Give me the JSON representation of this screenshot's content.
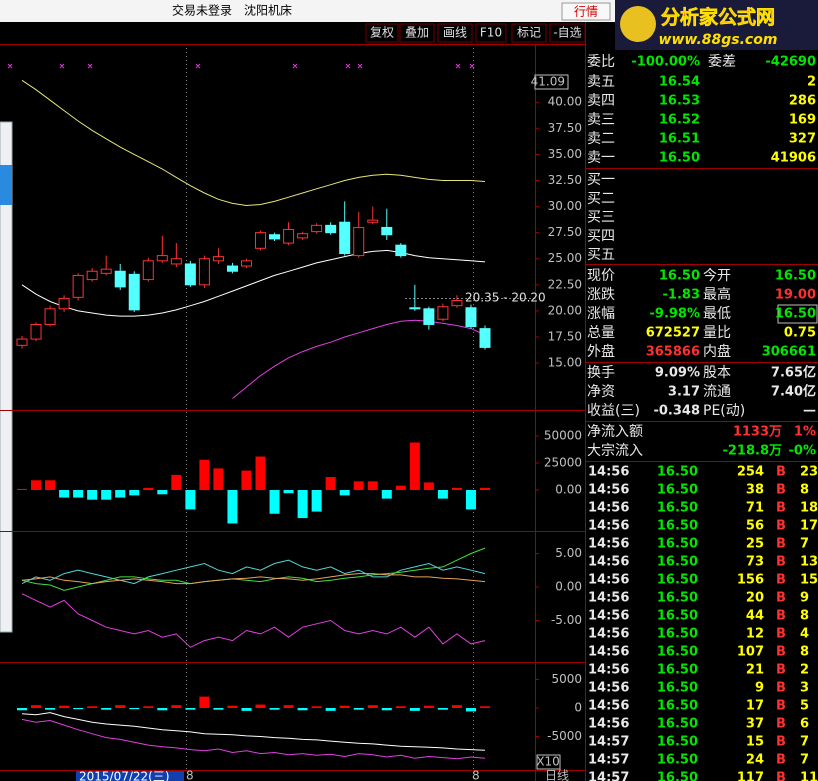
{
  "header": {
    "status": "交易未登录",
    "stock": "沈阳机床",
    "button": "行情"
  },
  "logo": {
    "title": "分析家公式网",
    "url": "www.88gs.com"
  },
  "toolbar": [
    "复权",
    "叠加",
    "画线",
    "F10",
    "标记",
    "-自选"
  ],
  "footer": {
    "date_label": "2015/07/22(三)",
    "period": "日线",
    "cursor_marks": [
      "8",
      "8"
    ]
  },
  "quote": {
    "weibi": [
      "委比",
      "-100.00%",
      "委差",
      "-42690"
    ],
    "asks": [
      [
        "卖五",
        "16.54",
        "2"
      ],
      [
        "卖四",
        "16.53",
        "286"
      ],
      [
        "卖三",
        "16.52",
        "169"
      ],
      [
        "卖二",
        "16.51",
        "327"
      ],
      [
        "卖一",
        "16.50",
        "41906"
      ]
    ],
    "bids": [
      "买一",
      "买二",
      "买三",
      "买四",
      "买五"
    ],
    "stats": [
      [
        "现价",
        "16.50",
        "今开",
        "16.50"
      ],
      [
        "涨跌",
        "-1.83",
        "最高",
        "19.00"
      ],
      [
        "涨幅",
        "-9.98%",
        "最低",
        "16.50"
      ],
      [
        "总量",
        "672527",
        "量比",
        "0.75"
      ],
      [
        "外盘",
        "365866",
        "内盘",
        "306661"
      ]
    ],
    "finance": [
      [
        "换手",
        "9.09%",
        "股本",
        "7.65亿"
      ],
      [
        "净资",
        "3.17",
        "流通",
        "7.40亿"
      ],
      [
        "收益(三)",
        "-0.348",
        "PE(动)",
        "—"
      ]
    ],
    "flows": [
      [
        "净流入额",
        "1133万",
        "1%"
      ],
      [
        "大宗流入",
        "-218.8万",
        "-0%"
      ]
    ],
    "ticks": [
      [
        "14:56",
        "16.50",
        "254",
        "B",
        "23"
      ],
      [
        "14:56",
        "16.50",
        "38",
        "B",
        "8"
      ],
      [
        "14:56",
        "16.50",
        "71",
        "B",
        "18"
      ],
      [
        "14:56",
        "16.50",
        "56",
        "B",
        "17"
      ],
      [
        "14:56",
        "16.50",
        "25",
        "B",
        "7"
      ],
      [
        "14:56",
        "16.50",
        "73",
        "B",
        "13"
      ],
      [
        "14:56",
        "16.50",
        "156",
        "B",
        "15"
      ],
      [
        "14:56",
        "16.50",
        "20",
        "B",
        "9"
      ],
      [
        "14:56",
        "16.50",
        "44",
        "B",
        "8"
      ],
      [
        "14:56",
        "16.50",
        "12",
        "B",
        "4"
      ],
      [
        "14:56",
        "16.50",
        "107",
        "B",
        "8"
      ],
      [
        "14:56",
        "16.50",
        "21",
        "B",
        "2"
      ],
      [
        "14:56",
        "16.50",
        "9",
        "B",
        "3"
      ],
      [
        "14:56",
        "16.50",
        "17",
        "B",
        "5"
      ],
      [
        "14:56",
        "16.50",
        "37",
        "B",
        "6"
      ],
      [
        "14:57",
        "16.50",
        "15",
        "B",
        "7"
      ],
      [
        "14:57",
        "16.50",
        "24",
        "B",
        "7"
      ],
      [
        "14:57",
        "16.50",
        "117",
        "B",
        "11"
      ]
    ]
  },
  "chart_data": [
    {
      "type": "candlestick",
      "cursor_value": 41.09,
      "annotation": "20.35 - 20.20",
      "categories": [
        null,
        null,
        null,
        null,
        null,
        null,
        null,
        null,
        null,
        null,
        null,
        null,
        null,
        null,
        null,
        null,
        null,
        null,
        null,
        null,
        null,
        null,
        null,
        null,
        null,
        null,
        null,
        null,
        null,
        null,
        null,
        null,
        null,
        null
      ],
      "open": [
        16.7,
        17.3,
        18.7,
        20.2,
        21.3,
        23.0,
        23.6,
        23.8,
        23.5,
        23.0,
        24.8,
        24.5,
        24.5,
        22.5,
        24.8,
        24.3,
        24.3,
        26.0,
        27.3,
        26.5,
        27.0,
        27.6,
        28.2,
        28.5,
        25.3,
        28.5,
        28.0,
        26.3,
        20.3,
        20.2,
        19.2,
        20.5,
        20.3,
        18.3
      ],
      "high": [
        17.6,
        18.9,
        20.5,
        21.5,
        23.6,
        24.1,
        25.3,
        24.5,
        23.8,
        25.1,
        27.2,
        26.5,
        24.8,
        25.3,
        26.0,
        24.6,
        25.0,
        27.7,
        27.5,
        28.5,
        27.6,
        28.4,
        28.5,
        30.5,
        29.5,
        30.0,
        29.8,
        26.5,
        22.5,
        20.4,
        20.7,
        21.5,
        20.6,
        18.6
      ],
      "low": [
        16.4,
        17.1,
        18.5,
        19.9,
        21.0,
        22.8,
        23.4,
        22.0,
        19.9,
        22.8,
        24.6,
        24.2,
        22.3,
        22.2,
        24.5,
        23.6,
        24.1,
        25.8,
        26.7,
        26.3,
        26.8,
        27.4,
        27.3,
        25.3,
        25.1,
        28.3,
        26.8,
        25.1,
        20.0,
        18.2,
        19.0,
        20.3,
        18.3,
        16.3
      ],
      "close": [
        17.3,
        18.7,
        20.2,
        21.2,
        23.4,
        23.8,
        24.0,
        22.3,
        20.1,
        24.8,
        25.3,
        25.0,
        22.5,
        25.0,
        25.2,
        23.8,
        24.8,
        27.5,
        26.9,
        27.8,
        27.4,
        28.2,
        27.5,
        25.5,
        28.0,
        28.7,
        27.3,
        25.3,
        20.2,
        18.7,
        20.4,
        21.0,
        18.5,
        16.5
      ],
      "up_color": "#ff3232",
      "down_color": "#54ffff",
      "series": [
        {
          "color": "#e6e678",
          "values": [
            42.1,
            41.2,
            40.2,
            39.2,
            38.2,
            37.3,
            36.5,
            35.7,
            35.0,
            34.3,
            33.6,
            32.8,
            32.0,
            31.3,
            30.7,
            30.3,
            30.1,
            30.2,
            30.5,
            30.9,
            31.3,
            31.7,
            32.1,
            32.5,
            32.8,
            33.0,
            33.1,
            33.0,
            32.8,
            32.6,
            32.5,
            32.5,
            32.5,
            32.4
          ]
        },
        {
          "color": "#ffffff",
          "values": [
            22.5,
            21.6,
            20.9,
            20.4,
            20.0,
            19.8,
            19.6,
            19.5,
            19.5,
            19.6,
            19.8,
            20.1,
            20.5,
            20.9,
            21.4,
            21.9,
            22.4,
            22.9,
            23.4,
            23.8,
            24.2,
            24.6,
            24.9,
            25.2,
            25.5,
            25.7,
            25.8,
            25.6,
            25.3,
            25.1,
            25.0,
            24.9,
            24.8,
            24.7
          ]
        },
        {
          "color": "#e040e0",
          "values": [
            null,
            null,
            null,
            null,
            null,
            null,
            null,
            null,
            null,
            null,
            null,
            null,
            null,
            null,
            null,
            11.6,
            12.7,
            13.8,
            14.7,
            15.5,
            16.1,
            16.6,
            17.0,
            17.5,
            17.9,
            18.3,
            18.7,
            19.0,
            19.1,
            19.0,
            18.8,
            18.6,
            18.3,
            17.7
          ]
        }
      ],
      "ylim": [
        10.5,
        45.2
      ],
      "yticks": [
        {
          "value": 15,
          "label": "15.00"
        },
        {
          "value": 17.5,
          "label": "17.50"
        },
        {
          "value": 20,
          "label": "20.00"
        },
        {
          "value": 22.5,
          "label": "22.50"
        },
        {
          "value": 25,
          "label": "25.00"
        },
        {
          "value": 27.5,
          "label": "27.50"
        },
        {
          "value": 30,
          "label": "30.00"
        },
        {
          "value": 32.5,
          "label": "32.50"
        },
        {
          "value": 35,
          "label": "35.00"
        },
        {
          "value": 37.5,
          "label": "37.50"
        },
        {
          "value": 40,
          "label": "40.00"
        }
      ]
    },
    {
      "type": "bar",
      "up_color": "#ff0000",
      "down_color": "#00ffff",
      "categories": [
        null,
        null,
        null,
        null,
        null,
        null,
        null,
        null,
        null,
        null,
        null,
        null,
        null,
        null,
        null,
        null,
        null,
        null,
        null,
        null,
        null,
        null,
        null,
        null,
        null,
        null,
        null,
        null,
        null,
        null,
        null,
        null,
        null,
        null
      ],
      "values": [
        1000,
        9000,
        9000,
        -7000,
        -7000,
        -9000,
        -9000,
        -7000,
        -5000,
        2000,
        -4000,
        14000,
        -18000,
        28000,
        20000,
        -31000,
        18000,
        31000,
        -22000,
        -3000,
        -26000,
        -20000,
        12000,
        -5000,
        8000,
        8000,
        -8000,
        4000,
        44000,
        7000,
        -8000,
        2000,
        -18000,
        2000
      ],
      "ylim": [
        -37037,
        69444
      ],
      "yticks": [
        50000,
        25000,
        {
          "value": 0,
          "label": "0.00"
        }
      ]
    },
    {
      "type": "line",
      "categories": [
        null,
        null,
        null,
        null,
        null,
        null,
        null,
        null,
        null,
        null,
        null,
        null,
        null,
        null,
        null,
        null,
        null,
        null,
        null,
        null,
        null,
        null,
        null,
        null,
        null,
        null,
        null,
        null,
        null,
        null,
        null,
        null,
        null,
        null
      ],
      "series": [
        {
          "color": "#50d8d8",
          "values": [
            0.5,
            1.5,
            1.0,
            2.0,
            2.5,
            2.0,
            1.5,
            1.0,
            0.5,
            1.5,
            2.0,
            2.5,
            3.0,
            3.5,
            2.5,
            2.0,
            3.0,
            2.5,
            3.5,
            4.0,
            3.0,
            2.5,
            3.0,
            2.0,
            2.5,
            1.5,
            1.5,
            2.5,
            3.0,
            3.5,
            2.5,
            3.0,
            2.5,
            2.0
          ]
        },
        {
          "color": "#40e040",
          "values": [
            1.0,
            0.5,
            0.3,
            -0.5,
            0.0,
            0.5,
            1.0,
            1.5,
            1.5,
            1.2,
            1.0,
            1.0,
            0.5,
            0.8,
            1.0,
            1.2,
            1.0,
            0.8,
            1.2,
            1.5,
            1.3,
            0.8,
            1.0,
            1.3,
            1.5,
            1.8,
            2.0,
            2.2,
            2.5,
            2.8,
            3.0,
            4.0,
            5.0,
            5.8
          ]
        },
        {
          "color": "#e8a060",
          "values": [
            1.0,
            1.2,
            1.5,
            1.0,
            0.8,
            0.5,
            0.8,
            1.0,
            1.2,
            1.0,
            0.8,
            0.5,
            0.5,
            0.8,
            1.0,
            1.2,
            1.3,
            1.5,
            1.3,
            1.2,
            1.0,
            1.2,
            1.5,
            1.8,
            2.0,
            2.0,
            1.8,
            1.8,
            1.5,
            1.5,
            1.3,
            1.2,
            1.0,
            0.8
          ]
        },
        {
          "color": "#e040e0",
          "values": [
            -1.0,
            -2.0,
            -3.0,
            -2.0,
            -4.0,
            -5.0,
            -6.0,
            -6.5,
            -7.0,
            -6.5,
            -7.5,
            -7.0,
            -9.0,
            -8.0,
            -7.5,
            -8.0,
            -6.5,
            -7.0,
            -6.0,
            -7.5,
            -6.0,
            -5.5,
            -5.0,
            -6.5,
            -7.0,
            -6.5,
            -7.0,
            -6.0,
            -7.5,
            -6.0,
            -8.5,
            -7.0,
            -8.5,
            -8.0
          ]
        }
      ],
      "ylim": [
        -10.9,
        7.76
      ],
      "yticks": [
        {
          "value": 5,
          "label": "5.00"
        },
        {
          "value": 0,
          "label": "0.00"
        },
        {
          "value": -5,
          "label": "-5.00"
        }
      ]
    },
    {
      "type": "combo",
      "scale_label": "X10",
      "up_color": "#ff0000",
      "down_color": "#00ffff",
      "categories": [
        null,
        null,
        null,
        null,
        null,
        null,
        null,
        null,
        null,
        null,
        null,
        null,
        null,
        null,
        null,
        null,
        null,
        null,
        null,
        null,
        null,
        null,
        null,
        null,
        null,
        null,
        null,
        null,
        null,
        null,
        null,
        null,
        null,
        null
      ],
      "values": [
        -400,
        500,
        -300,
        400,
        -200,
        300,
        -300,
        500,
        -200,
        300,
        -400,
        500,
        -300,
        2000,
        -300,
        400,
        -500,
        600,
        -300,
        500,
        -400,
        300,
        -500,
        400,
        -300,
        500,
        -400,
        300,
        -500,
        400,
        -300,
        500,
        -600,
        300
      ],
      "series": [
        {
          "color": "#ffffff",
          "values": [
            -1000,
            -1200,
            -800,
            -1500,
            -2000,
            -2500,
            -2800,
            -3000,
            -3200,
            -3500,
            -3800,
            -4000,
            -4200,
            -4500,
            -4600,
            -4700,
            -4900,
            -5000,
            -5200,
            -5300,
            -5500,
            -5600,
            -5800,
            -6000,
            -6200,
            -6300,
            -6500,
            -6700,
            -6800,
            -6900,
            -7000,
            -7200,
            -7300,
            -7400
          ]
        },
        {
          "color": "#e040e0",
          "values": [
            -2000,
            -2500,
            -2200,
            -3000,
            -3800,
            -4500,
            -5200,
            -5500,
            -6000,
            -6500,
            -6800,
            -7000,
            -7300,
            -7500,
            -7200,
            -7800,
            -7500,
            -8000,
            -7800,
            -8200,
            -8000,
            -8300,
            -8100,
            -8500,
            -8000,
            -8200,
            -8600,
            -8300,
            -8800,
            -8500,
            -8700,
            -8900,
            -8600,
            -8800
          ]
        }
      ],
      "ylim": [
        -10877,
        7544
      ],
      "yticks": [
        5000,
        0,
        -5000
      ]
    }
  ]
}
